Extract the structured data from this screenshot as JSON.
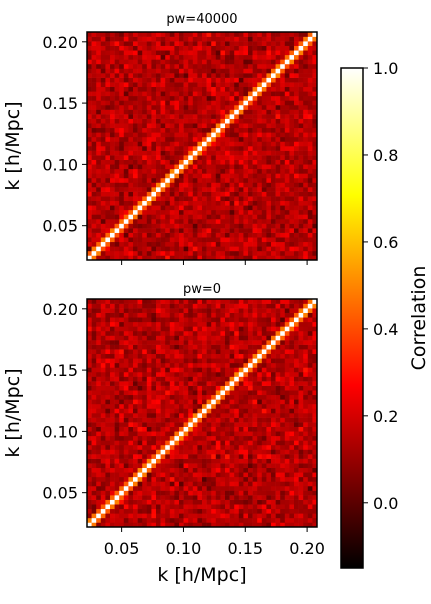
{
  "chart_data": {
    "type": "heatmap",
    "panels": [
      {
        "title": "pw=40000",
        "ylabel": "k [h/Mpc]",
        "xlabel": "",
        "xlim": [
          0.022,
          0.208
        ],
        "ylim": [
          0.022,
          0.208
        ],
        "xticks": [
          0.05,
          0.1,
          0.15,
          0.2
        ],
        "yticks": [
          0.05,
          0.1,
          0.15,
          0.2
        ],
        "xtick_labels": [
          "",
          "",
          "",
          ""
        ],
        "ytick_labels": [
          "0.05",
          "0.10",
          "0.15",
          "0.20"
        ],
        "bins": 50,
        "diagonal": 1.0,
        "near_diagonal": 0.45,
        "off_diagonal_mean": 0.15,
        "off_diagonal_spread": 0.07
      },
      {
        "title": "pw=0",
        "ylabel": "k [h/Mpc]",
        "xlabel": "k [h/Mpc]",
        "xlim": [
          0.022,
          0.208
        ],
        "ylim": [
          0.022,
          0.208
        ],
        "xticks": [
          0.05,
          0.1,
          0.15,
          0.2
        ],
        "yticks": [
          0.05,
          0.1,
          0.15,
          0.2
        ],
        "xtick_labels": [
          "0.05",
          "0.10",
          "0.15",
          "0.20"
        ],
        "ytick_labels": [
          "0.05",
          "0.10",
          "0.15",
          "0.20"
        ],
        "bins": 50,
        "diagonal": 1.0,
        "near_diagonal": 0.45,
        "off_diagonal_mean": 0.15,
        "off_diagonal_spread": 0.07
      }
    ],
    "colorbar": {
      "label": "Correlation",
      "colormap": "hot",
      "vmin": -0.15,
      "vmax": 1.0,
      "ticks": [
        0.0,
        0.2,
        0.4,
        0.6,
        0.8,
        1.0
      ],
      "tick_labels": [
        "0.0",
        "0.2",
        "0.4",
        "0.6",
        "0.8",
        "1.0"
      ]
    }
  }
}
